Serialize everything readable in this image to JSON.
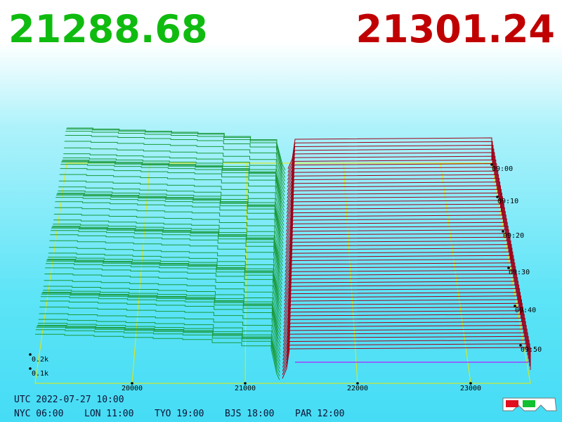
{
  "header": {
    "bid": "21288.68",
    "ask": "21301.24"
  },
  "price_axis": {
    "ticks": [
      "20000",
      "21000",
      "22000",
      "23000"
    ]
  },
  "time_axis": {
    "ticks": [
      "09:00",
      "09:10",
      "09:20",
      "09:30",
      "09:40",
      "09:50"
    ]
  },
  "volume_axis": {
    "ticks": [
      "0.2k",
      "0.1k"
    ]
  },
  "footer": {
    "utc": "UTC 2022-07-27 10:00",
    "cities": [
      "NYC 06:00",
      "LON 11:00",
      "TYO 19:00",
      "BJS 18:00",
      "PAR 12:00"
    ]
  }
}
